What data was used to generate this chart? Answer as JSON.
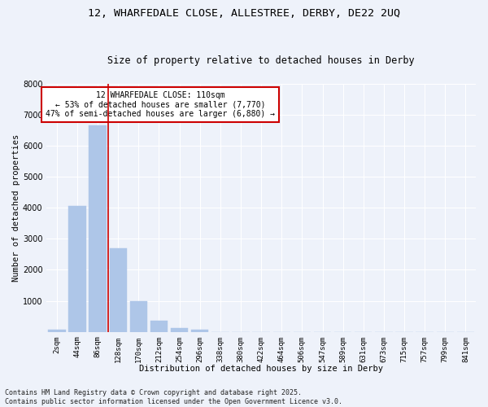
{
  "title_line1": "12, WHARFEDALE CLOSE, ALLESTREE, DERBY, DE22 2UQ",
  "title_line2": "Size of property relative to detached houses in Derby",
  "xlabel": "Distribution of detached houses by size in Derby",
  "ylabel": "Number of detached properties",
  "bar_color": "#aec6e8",
  "vline_color": "#cc0000",
  "vline_pos": 2.5,
  "annotation_text": "12 WHARFEDALE CLOSE: 110sqm\n← 53% of detached houses are smaller (7,770)\n47% of semi-detached houses are larger (6,880) →",
  "annotation_box_facecolor": "#ffffff",
  "annotation_box_edgecolor": "#cc0000",
  "categories": [
    "2sqm",
    "44sqm",
    "86sqm",
    "128sqm",
    "170sqm",
    "212sqm",
    "254sqm",
    "296sqm",
    "338sqm",
    "380sqm",
    "422sqm",
    "464sqm",
    "506sqm",
    "547sqm",
    "589sqm",
    "631sqm",
    "673sqm",
    "715sqm",
    "757sqm",
    "799sqm",
    "841sqm"
  ],
  "values": [
    70,
    4050,
    6650,
    2700,
    990,
    350,
    120,
    70,
    0,
    0,
    0,
    0,
    0,
    0,
    0,
    0,
    0,
    0,
    0,
    0,
    0
  ],
  "ylim": [
    0,
    8000
  ],
  "yticks": [
    0,
    1000,
    2000,
    3000,
    4000,
    5000,
    6000,
    7000,
    8000
  ],
  "background_color": "#eef2fa",
  "grid_color": "#ffffff",
  "footer_line1": "Contains HM Land Registry data © Crown copyright and database right 2025.",
  "footer_line2": "Contains public sector information licensed under the Open Government Licence v3.0.",
  "title_fontsize": 9.5,
  "subtitle_fontsize": 8.5,
  "axis_label_fontsize": 7.5,
  "tick_fontsize": 6.5,
  "annot_fontsize": 7,
  "footer_fontsize": 6
}
